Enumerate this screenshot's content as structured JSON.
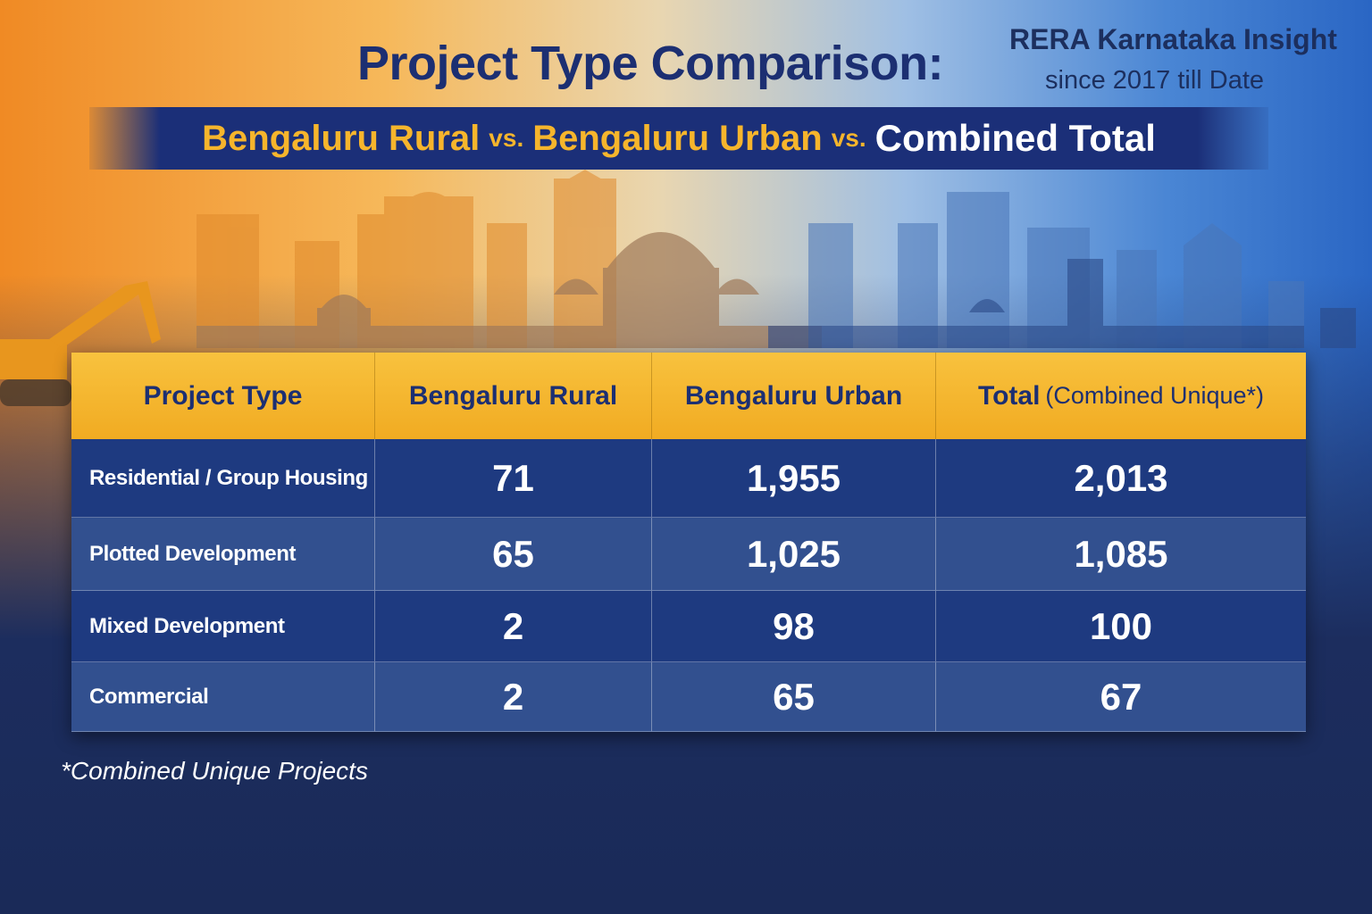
{
  "header": {
    "title": "Project Type Comparison:",
    "brand": "RERA Karnataka Insight",
    "brand_subtitle": "since 2017 till Date",
    "subtitle": [
      "Bengaluru Rural",
      "vs.",
      "Bengaluru Urban",
      "vs.",
      "Combined Total"
    ]
  },
  "table": {
    "columns": [
      [
        "Project Type"
      ],
      [
        "Bengaluru Rural"
      ],
      [
        "Bengaluru Urban"
      ],
      [
        "Total",
        "(Combined Unique*)"
      ]
    ],
    "rows": [
      [
        "Residential / Group Housing",
        "71",
        "1,955",
        "2,013"
      ],
      [
        "Plotted Development",
        "65",
        "1,025",
        "1,085"
      ],
      [
        "Mixed Development",
        "2",
        "98",
        "100"
      ],
      [
        "Commercial",
        "2",
        "65",
        "67"
      ]
    ]
  },
  "footnote": "*Combined Unique Projects"
}
